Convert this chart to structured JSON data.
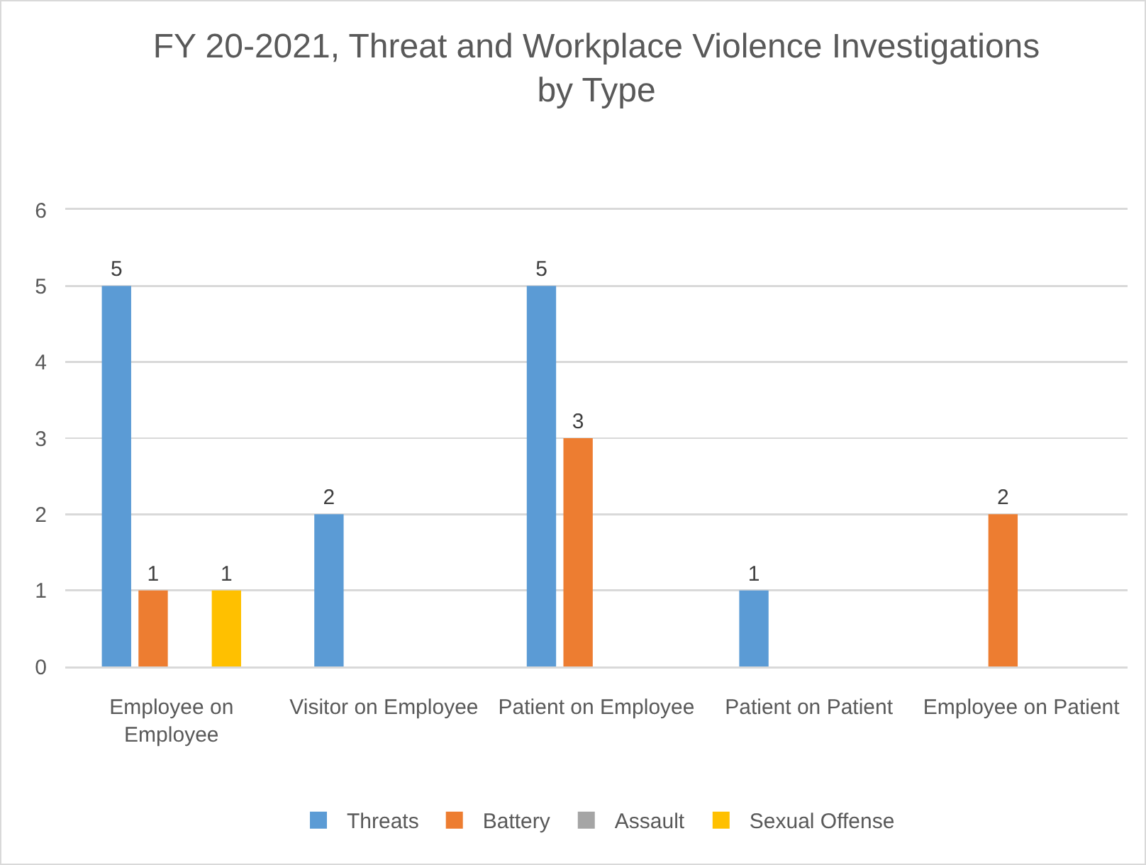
{
  "chart_data": {
    "type": "bar",
    "title": "FY 20-2021, Threat and Workplace Violence Investigations by Type",
    "categories": [
      "Employee on Employee",
      "Visitor on Employee",
      "Patient on Employee",
      "Patient on Patient",
      "Employee on Patient"
    ],
    "series": [
      {
        "name": "Threats",
        "color": "#5b9bd5",
        "values": [
          5,
          2,
          5,
          1,
          0
        ],
        "value_labels": [
          "5",
          "2",
          "5",
          "1",
          null
        ]
      },
      {
        "name": "Battery",
        "color": "#ed7d31",
        "values": [
          1,
          0,
          3,
          0,
          2
        ],
        "value_labels": [
          "1",
          null,
          "3",
          null,
          "2"
        ]
      },
      {
        "name": "Assault",
        "color": "#a5a5a5",
        "values": [
          0,
          0,
          0,
          0,
          0
        ],
        "value_labels": [
          null,
          null,
          null,
          null,
          null
        ]
      },
      {
        "name": "Sexual Offense",
        "color": "#ffc000",
        "values": [
          1,
          0,
          0,
          0,
          0
        ],
        "value_labels": [
          "1",
          null,
          null,
          null,
          null
        ]
      }
    ],
    "ylim": [
      0,
      6
    ],
    "yticks": [
      0,
      1,
      2,
      3,
      4,
      5,
      6
    ],
    "grid": "y",
    "legend": "bottom"
  }
}
